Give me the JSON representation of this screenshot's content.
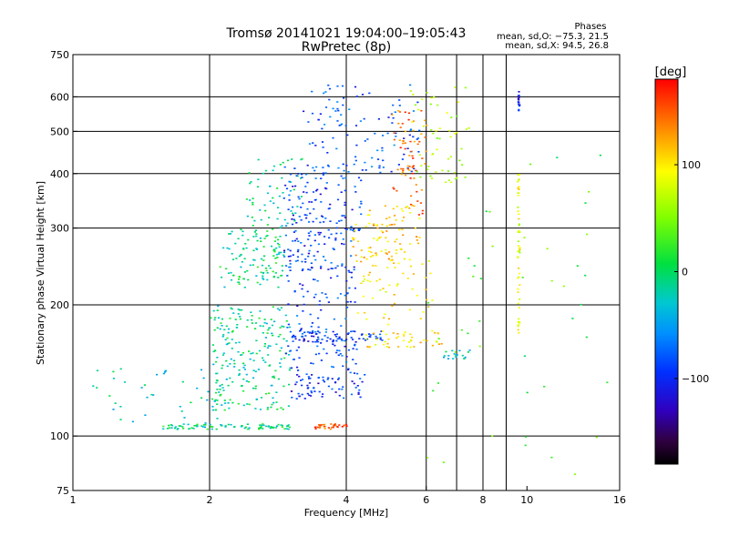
{
  "chart_data": {
    "type": "scatter",
    "title": "Tromsø 20141021 19:04:00–19:05:43",
    "subtitle": "RwPretec (8p)",
    "xlabel": "Frequency [MHz]",
    "ylabel": "Stationary phase Virtual Height [km]",
    "x_scale": "log",
    "y_scale": "log",
    "xlim": [
      1,
      16
    ],
    "ylim": [
      75,
      750
    ],
    "x_ticks": [
      {
        "value": 1,
        "label": "1"
      },
      {
        "value": 2,
        "label": "2"
      },
      {
        "value": 4,
        "label": "4"
      },
      {
        "value": 6,
        "label": "6"
      },
      {
        "value": 8,
        "label": "8"
      },
      {
        "value": 10,
        "label": "10"
      },
      {
        "value": 16,
        "label": "16"
      }
    ],
    "y_ticks": [
      {
        "value": 75,
        "label": "75"
      },
      {
        "value": 100,
        "label": "100"
      },
      {
        "value": 200,
        "label": "200"
      },
      {
        "value": 300,
        "label": "300"
      },
      {
        "value": 400,
        "label": "400"
      },
      {
        "value": 500,
        "label": "500"
      },
      {
        "value": 600,
        "label": "600"
      },
      {
        "value": 750,
        "label": "750"
      }
    ],
    "grid_x": [
      2,
      4,
      6,
      7,
      8,
      9
    ],
    "grid_y": [
      100,
      200,
      300,
      400,
      500,
      600
    ],
    "phase_stats": {
      "title": "Phases",
      "line_o": "mean, sd,O: −75.3, 21.5",
      "line_x": "mean, sd,X:  94.5, 26.8"
    },
    "colorbar": {
      "label": "[deg]",
      "range": [
        -180,
        180
      ],
      "ticks": [
        {
          "value": 100,
          "label": "100"
        },
        {
          "value": 0,
          "label": "0"
        },
        {
          "value": -100,
          "label": "−100"
        }
      ]
    },
    "clusters": [
      {
        "id": "cyan-trace-105",
        "x": [
          1.55,
          3.0
        ],
        "y": [
          104,
          107
        ],
        "n": 90,
        "phase": -10,
        "spread": 0.01
      },
      {
        "id": "orange-trace-105",
        "x": [
          3.4,
          4.0
        ],
        "y": [
          104,
          107
        ],
        "n": 35,
        "phase": 150,
        "spread": 0.01
      },
      {
        "id": "cyan-low-scatter",
        "x": [
          1.1,
          2.2
        ],
        "y": [
          105,
          145
        ],
        "n": 45,
        "phase": -25,
        "spread": 0.05
      },
      {
        "id": "cyan-e-region",
        "x": [
          2.0,
          3.0
        ],
        "y": [
          115,
          200
        ],
        "n": 220,
        "phase": -15,
        "spread": 0.05
      },
      {
        "id": "cyan-f-lower",
        "x": [
          2.1,
          2.9
        ],
        "y": [
          220,
          300
        ],
        "n": 120,
        "phase": -10,
        "spread": 0.05
      },
      {
        "id": "cyan-f-upper",
        "x": [
          2.4,
          3.2
        ],
        "y": [
          300,
          440
        ],
        "n": 60,
        "phase": -20,
        "spread": 0.06
      },
      {
        "id": "blue-trace-170",
        "x": [
          3.0,
          4.8
        ],
        "y": [
          165,
          175
        ],
        "n": 70,
        "phase": -95,
        "spread": 0.02
      },
      {
        "id": "blue-trace-135",
        "x": [
          3.0,
          4.4
        ],
        "y": [
          122,
          140
        ],
        "n": 70,
        "phase": -100,
        "spread": 0.03
      },
      {
        "id": "blue-mid",
        "x": [
          2.9,
          4.2
        ],
        "y": [
          140,
          260
        ],
        "n": 140,
        "phase": -90,
        "spread": 0.05
      },
      {
        "id": "blue-f-upper",
        "x": [
          2.9,
          4.3
        ],
        "y": [
          240,
          420
        ],
        "n": 180,
        "phase": -95,
        "spread": 0.05
      },
      {
        "id": "blue-top",
        "x": [
          3.2,
          5.8
        ],
        "y": [
          400,
          650
        ],
        "n": 110,
        "phase": -85,
        "spread": 0.06
      },
      {
        "id": "yellow-f2",
        "x": [
          4.1,
          5.8
        ],
        "y": [
          250,
          340
        ],
        "n": 90,
        "phase": 110,
        "spread": 0.04
      },
      {
        "id": "yellow-mid",
        "x": [
          4.2,
          6.2
        ],
        "y": [
          180,
          260
        ],
        "n": 55,
        "phase": 95,
        "spread": 0.05
      },
      {
        "id": "yellow-trace-165",
        "x": [
          4.4,
          6.5
        ],
        "y": [
          160,
          175
        ],
        "n": 45,
        "phase": 100,
        "spread": 0.02
      },
      {
        "id": "orange-upper",
        "x": [
          5.0,
          6.0
        ],
        "y": [
          320,
          560
        ],
        "n": 70,
        "phase": 145,
        "spread": 0.05
      },
      {
        "id": "mixed-upper-right",
        "x": [
          5.5,
          7.5
        ],
        "y": [
          380,
          650
        ],
        "n": 55,
        "phase": 60,
        "spread": 0.08
      },
      {
        "id": "yellow-column-9p5",
        "x": [
          9.5,
          9.6
        ],
        "y": [
          170,
          400
        ],
        "n": 50,
        "phase": 80,
        "spread": 0.01
      },
      {
        "id": "blue-column-9p5",
        "x": [
          9.5,
          9.6
        ],
        "y": [
          560,
          620
        ],
        "n": 15,
        "phase": -110,
        "spread": 0.01
      },
      {
        "id": "teal-trace-155",
        "x": [
          6.5,
          7.5
        ],
        "y": [
          150,
          158
        ],
        "n": 20,
        "phase": -30,
        "spread": 0.02
      },
      {
        "id": "sparse-right",
        "x": [
          6.0,
          15.0
        ],
        "y": [
          80,
          460
        ],
        "n": 45,
        "phase": 20,
        "spread": 0.2
      }
    ]
  }
}
